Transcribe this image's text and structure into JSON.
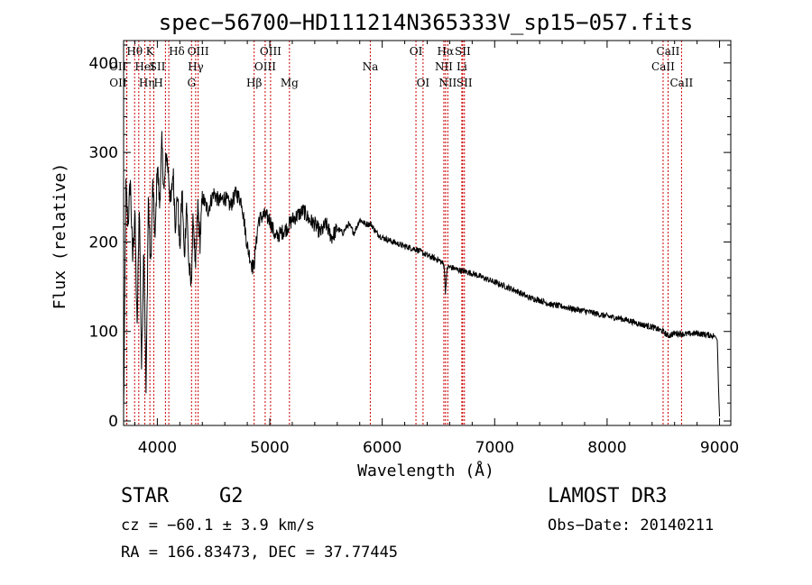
{
  "chart_data": {
    "type": "line",
    "title": "spec−56700−HD111214N365333V_sp15−057.fits",
    "xlabel": "Wavelength (Å)",
    "ylabel": "Flux (relative)",
    "xlim": [
      3700,
      9100
    ],
    "ylim": [
      -5,
      425
    ],
    "xticks": [
      4000,
      5000,
      6000,
      7000,
      8000,
      9000
    ],
    "yticks": [
      0,
      100,
      200,
      300,
      400
    ],
    "series": [
      {
        "name": "flux",
        "x": [
          3700,
          3720,
          3740,
          3760,
          3780,
          3800,
          3820,
          3840,
          3860,
          3880,
          3900,
          3920,
          3940,
          3960,
          3980,
          4000,
          4020,
          4040,
          4060,
          4080,
          4100,
          4120,
          4140,
          4160,
          4180,
          4200,
          4220,
          4240,
          4260,
          4280,
          4300,
          4320,
          4340,
          4360,
          4380,
          4400,
          4450,
          4500,
          4550,
          4600,
          4650,
          4700,
          4750,
          4800,
          4850,
          4860,
          4900,
          4950,
          5000,
          5050,
          5100,
          5150,
          5200,
          5250,
          5300,
          5350,
          5400,
          5450,
          5500,
          5550,
          5600,
          5650,
          5700,
          5750,
          5800,
          5850,
          5900,
          5950,
          6000,
          6100,
          6200,
          6300,
          6400,
          6500,
          6550,
          6562,
          6580,
          6600,
          6700,
          6800,
          6900,
          7000,
          7100,
          7200,
          7300,
          7400,
          7500,
          7600,
          7700,
          7800,
          7900,
          8000,
          8100,
          8200,
          8300,
          8400,
          8500,
          8540,
          8600,
          8700,
          8800,
          8900,
          8960,
          8980,
          8990,
          9000
        ],
        "y": [
          10,
          260,
          220,
          270,
          180,
          235,
          100,
          245,
          60,
          200,
          30,
          250,
          170,
          265,
          200,
          290,
          240,
          310,
          255,
          300,
          275,
          240,
          280,
          220,
          255,
          190,
          260,
          180,
          245,
          175,
          150,
          230,
          165,
          240,
          200,
          250,
          235,
          255,
          245,
          250,
          240,
          255,
          245,
          195,
          170,
          175,
          225,
          230,
          225,
          205,
          210,
          215,
          225,
          230,
          235,
          225,
          220,
          210,
          220,
          205,
          215,
          210,
          220,
          210,
          225,
          220,
          220,
          210,
          205,
          200,
          195,
          192,
          185,
          180,
          175,
          145,
          172,
          172,
          168,
          165,
          160,
          155,
          150,
          145,
          138,
          135,
          130,
          128,
          125,
          123,
          120,
          117,
          115,
          112,
          108,
          105,
          100,
          95,
          98,
          97,
          98,
          96,
          95,
          90,
          40,
          5
        ]
      }
    ],
    "lines": [
      {
        "name": "OII",
        "x": 3727,
        "row": 2,
        "anchor": "end"
      },
      {
        "name": "OII",
        "x": 3729,
        "row": 3,
        "anchor": "end"
      },
      {
        "name": "Hθ",
        "x": 3798,
        "row": 1,
        "anchor": "middle"
      },
      {
        "name": "Hη",
        "x": 3835,
        "row": 3,
        "anchor": "start"
      },
      {
        "name": "HeI",
        "x": 3889,
        "row": 2,
        "anchor": "middle"
      },
      {
        "name": "K",
        "x": 3934,
        "row": 1,
        "anchor": "middle"
      },
      {
        "name": "H",
        "x": 3968,
        "row": 3,
        "anchor": "start"
      },
      {
        "name": "SII",
        "x": 4072,
        "row": 2,
        "anchor": "end"
      },
      {
        "name": "Hδ",
        "x": 4102,
        "row": 1,
        "anchor": "start"
      },
      {
        "name": "G",
        "x": 4304,
        "row": 3,
        "anchor": "middle"
      },
      {
        "name": "Hγ",
        "x": 4341,
        "row": 2,
        "anchor": "middle"
      },
      {
        "name": "OIII",
        "x": 4363,
        "row": 1,
        "anchor": "middle"
      },
      {
        "name": "Hβ",
        "x": 4861,
        "row": 3,
        "anchor": "middle"
      },
      {
        "name": "OIII",
        "x": 4959,
        "row": 2,
        "anchor": "middle"
      },
      {
        "name": "OIII",
        "x": 5007,
        "row": 1,
        "anchor": "middle"
      },
      {
        "name": "Mg",
        "x": 5175,
        "row": 3,
        "anchor": "middle"
      },
      {
        "name": "Na",
        "x": 5894,
        "row": 2,
        "anchor": "middle"
      },
      {
        "name": "OI",
        "x": 6300,
        "row": 1,
        "anchor": "middle"
      },
      {
        "name": "OI",
        "x": 6363,
        "row": 3,
        "anchor": "middle"
      },
      {
        "name": "NII",
        "x": 6548,
        "row": 2,
        "anchor": "middle"
      },
      {
        "name": "Hα",
        "x": 6563,
        "row": 1,
        "anchor": "middle"
      },
      {
        "name": "NII",
        "x": 6583,
        "row": 3,
        "anchor": "middle"
      },
      {
        "name": "Li",
        "x": 6708,
        "row": 2,
        "anchor": "middle"
      },
      {
        "name": "SII",
        "x": 6716,
        "row": 1,
        "anchor": "middle"
      },
      {
        "name": "SII",
        "x": 6731,
        "row": 3,
        "anchor": "middle"
      },
      {
        "name": "CaII",
        "x": 8498,
        "row": 2,
        "anchor": "middle"
      },
      {
        "name": "CaII",
        "x": 8542,
        "row": 1,
        "anchor": "middle"
      },
      {
        "name": "CaII",
        "x": 8662,
        "row": 3,
        "anchor": "middle"
      }
    ]
  },
  "info": {
    "class": "STAR",
    "subclass": "G2",
    "survey": "LAMOST DR3",
    "cz": "cz = −60.1 ± 3.9 km/s",
    "obs_date": "Obs−Date: 20140211",
    "radec": "RA = 166.83473, DEC =  37.77445"
  },
  "colors": {
    "line": "#000000",
    "marker": "#cc0000"
  }
}
